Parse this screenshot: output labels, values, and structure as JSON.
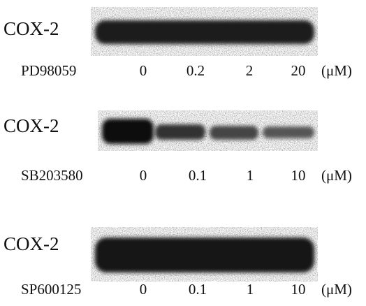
{
  "panels": [
    {
      "protein": "COX-2",
      "inhibitor": "PD98059",
      "concentrations": [
        "0",
        "0.2",
        "2",
        "20"
      ],
      "unit": "(μM)"
    },
    {
      "protein": "COX-2",
      "inhibitor": "SB203580",
      "concentrations": [
        "0",
        "0.1",
        "1",
        "10"
      ],
      "unit": "(μM)"
    },
    {
      "protein": "COX-2",
      "inhibitor": "SP600125",
      "concentrations": [
        "0",
        "0.1",
        "1",
        "10"
      ],
      "unit": "(μM)"
    }
  ]
}
